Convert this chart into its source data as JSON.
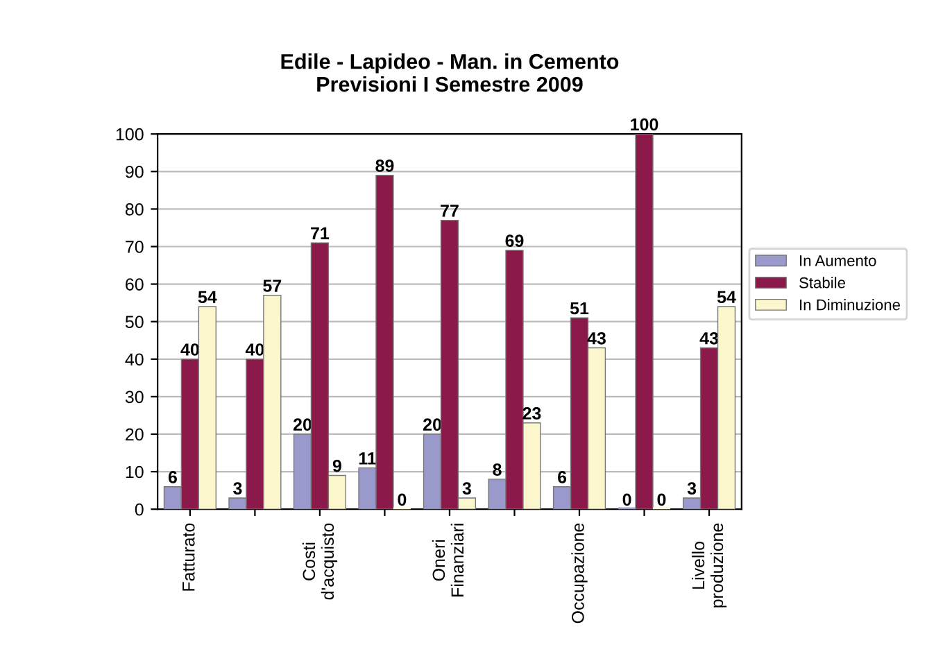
{
  "chart_data": {
    "type": "bar",
    "title": "Edile - Lapideo - Man. in Cemento\nPrevisioni I Semestre 2009",
    "categories": [
      "Fatturato",
      null,
      "Costi\nd'acquisto",
      null,
      "Oneri\nFinanziari",
      null,
      "Occupazione",
      null,
      "Livello\nproduzione"
    ],
    "series": [
      {
        "name": "In Aumento",
        "color": "#9999cc",
        "values": [
          6,
          3,
          20,
          11,
          20,
          8,
          6,
          0,
          3
        ]
      },
      {
        "name": "Stabile",
        "color": "#8b1a4a",
        "values": [
          40,
          40,
          71,
          89,
          77,
          69,
          51,
          100,
          43
        ]
      },
      {
        "name": "In Diminuzione",
        "color": "#fbf6cc",
        "values": [
          54,
          57,
          9,
          0,
          3,
          23,
          43,
          0,
          54
        ]
      }
    ],
    "ylim": [
      0,
      100
    ],
    "yticks": [
      0,
      10,
      20,
      30,
      40,
      50,
      60,
      70,
      80,
      90,
      100
    ],
    "grid": "y",
    "legend": "right",
    "data_labels": true
  }
}
